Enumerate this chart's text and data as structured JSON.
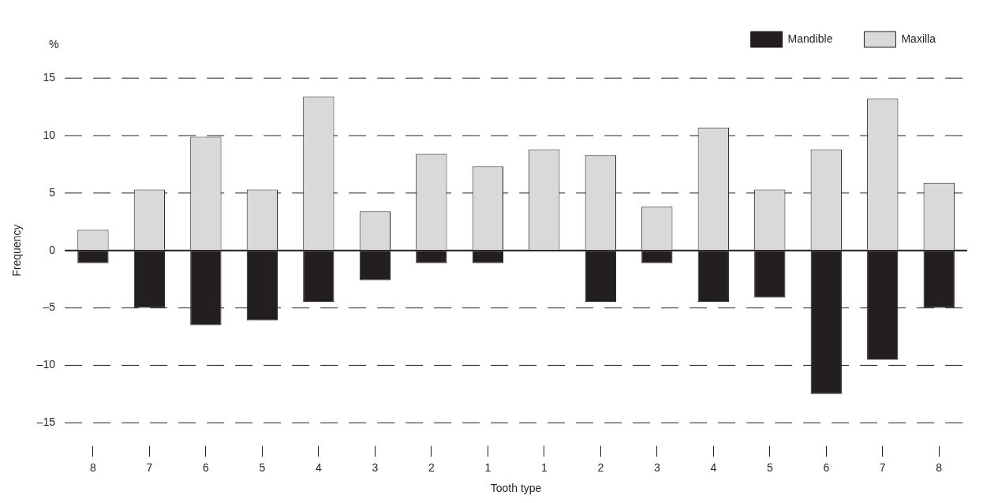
{
  "chart_data": {
    "type": "bar",
    "xlabel": "Tooth type",
    "ylabel": "Frequency",
    "annotations": [
      "%"
    ],
    "categories": [
      "8",
      "7",
      "6",
      "5",
      "4",
      "3",
      "2",
      "1",
      "1",
      "2",
      "3",
      "4",
      "5",
      "6",
      "7",
      "8"
    ],
    "series": [
      {
        "name": "Mandible",
        "color": "#231f20",
        "values": [
          -1.1,
          -5.0,
          -6.5,
          -6.1,
          -4.5,
          -2.6,
          -1.1,
          -1.1,
          null,
          -4.5,
          -1.1,
          -4.5,
          -4.1,
          -12.5,
          -9.5,
          -5.0
        ]
      },
      {
        "name": "Maxilla",
        "color": "#d9d9d9",
        "values": [
          1.8,
          5.3,
          9.9,
          5.3,
          13.4,
          3.4,
          8.4,
          7.3,
          8.8,
          8.3,
          3.8,
          10.7,
          5.3,
          8.8,
          13.2,
          5.9
        ]
      }
    ],
    "stacked": true,
    "ylim": [
      -17,
      17
    ],
    "yticks": [
      {
        "value": -15,
        "label": "–15"
      },
      {
        "value": -10,
        "label": "–10"
      },
      {
        "value": -5,
        "label": "–5"
      },
      0,
      5,
      10,
      15
    ],
    "grid": "y",
    "legend": "top right"
  }
}
